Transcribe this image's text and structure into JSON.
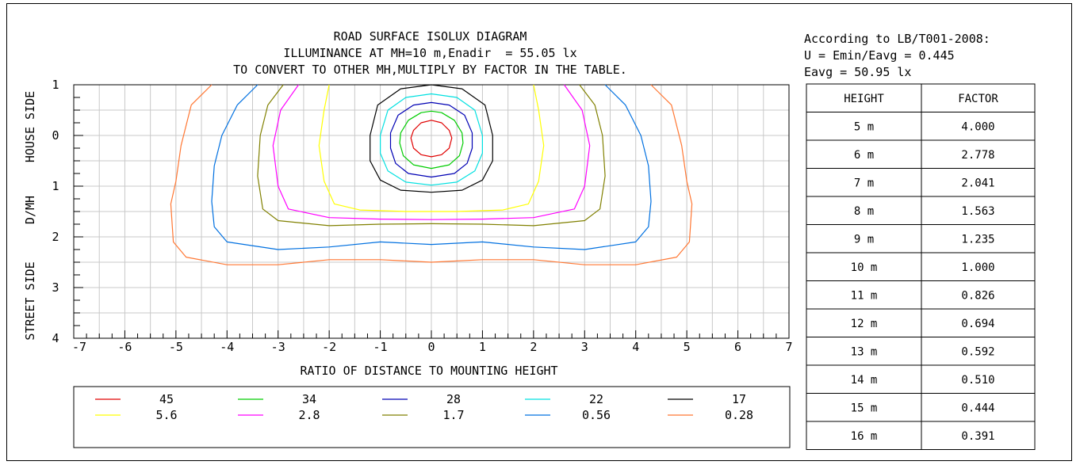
{
  "chart_data": {
    "type": "contour",
    "title": "ROAD SURFACE ISOLUX DIAGRAM",
    "subtitle": "ILLUMINANCE AT MH=10 m,Enadir  = 55.05 lx",
    "note": "TO CONVERT TO OTHER MH,MULTIPLY BY FACTOR IN THE TABLE.",
    "xlabel": "RATIO OF DISTANCE TO MOUNTING HEIGHT",
    "ylabel_parts": [
      "STREET SIDE",
      "D/MH",
      "HOUSE SIDE"
    ],
    "xlim": [
      -7,
      7
    ],
    "ylim": [
      -1,
      4
    ],
    "x_ticks": [
      -7,
      -6,
      -5,
      -4,
      -3,
      -2,
      -1,
      0,
      1,
      2,
      3,
      4,
      5,
      6,
      7
    ],
    "y_ticks": [
      -1,
      0,
      1,
      2,
      3,
      4
    ],
    "y_tick_labels": [
      "1",
      "0",
      "1",
      "2",
      "3",
      "4"
    ],
    "grid": true,
    "contours": [
      {
        "level": "45",
        "color": "#e00000",
        "points": [
          [
            -0.35,
            -0.1
          ],
          [
            -0.2,
            -0.25
          ],
          [
            0,
            -0.3
          ],
          [
            0.2,
            -0.25
          ],
          [
            0.35,
            -0.1
          ],
          [
            0.4,
            0.05
          ],
          [
            0.35,
            0.25
          ],
          [
            0.2,
            0.38
          ],
          [
            0,
            0.42
          ],
          [
            -0.2,
            0.38
          ],
          [
            -0.35,
            0.25
          ],
          [
            -0.4,
            0.05
          ]
        ]
      },
      {
        "level": "34",
        "color": "#00cc00",
        "points": [
          [
            -0.6,
            -0.05
          ],
          [
            -0.45,
            -0.3
          ],
          [
            -0.2,
            -0.45
          ],
          [
            0,
            -0.48
          ],
          [
            0.2,
            -0.45
          ],
          [
            0.45,
            -0.3
          ],
          [
            0.6,
            -0.05
          ],
          [
            0.62,
            0.15
          ],
          [
            0.55,
            0.4
          ],
          [
            0.35,
            0.58
          ],
          [
            0,
            0.65
          ],
          [
            -0.35,
            0.58
          ],
          [
            -0.55,
            0.4
          ],
          [
            -0.62,
            0.15
          ]
        ]
      },
      {
        "level": "28",
        "color": "#0000b4",
        "points": [
          [
            -0.8,
            -0.05
          ],
          [
            -0.65,
            -0.4
          ],
          [
            -0.35,
            -0.6
          ],
          [
            0,
            -0.65
          ],
          [
            0.35,
            -0.6
          ],
          [
            0.65,
            -0.4
          ],
          [
            0.8,
            -0.05
          ],
          [
            0.8,
            0.25
          ],
          [
            0.7,
            0.55
          ],
          [
            0.45,
            0.75
          ],
          [
            0,
            0.82
          ],
          [
            -0.45,
            0.75
          ],
          [
            -0.7,
            0.55
          ],
          [
            -0.8,
            0.25
          ]
        ]
      },
      {
        "level": "22",
        "color": "#00e0e0",
        "points": [
          [
            -1.0,
            0.0
          ],
          [
            -0.85,
            -0.5
          ],
          [
            -0.5,
            -0.75
          ],
          [
            0,
            -0.82
          ],
          [
            0.5,
            -0.75
          ],
          [
            0.85,
            -0.5
          ],
          [
            1.0,
            0.0
          ],
          [
            1.0,
            0.35
          ],
          [
            0.85,
            0.7
          ],
          [
            0.5,
            0.92
          ],
          [
            0,
            0.98
          ],
          [
            -0.5,
            0.92
          ],
          [
            -0.85,
            0.7
          ],
          [
            -1.0,
            0.35
          ]
        ]
      },
      {
        "level": "17",
        "color": "#000000",
        "points": [
          [
            -1.2,
            0.0
          ],
          [
            -1.05,
            -0.6
          ],
          [
            -0.6,
            -0.92
          ],
          [
            0,
            -1.0
          ],
          [
            0.6,
            -0.92
          ],
          [
            1.05,
            -0.6
          ],
          [
            1.2,
            0.0
          ],
          [
            1.2,
            0.5
          ],
          [
            1.0,
            0.88
          ],
          [
            0.6,
            1.08
          ],
          [
            0,
            1.12
          ],
          [
            -0.6,
            1.08
          ],
          [
            -1.0,
            0.88
          ],
          [
            -1.2,
            0.5
          ]
        ]
      },
      {
        "level": "5.6",
        "color": "#ffff00",
        "points": [
          [
            -2.0,
            -1.0
          ],
          [
            -2.1,
            -0.5
          ],
          [
            -2.2,
            0.2
          ],
          [
            -2.1,
            0.9
          ],
          [
            -1.9,
            1.35
          ],
          [
            -1.4,
            1.47
          ],
          [
            -0.5,
            1.5
          ],
          [
            0.5,
            1.5
          ],
          [
            1.4,
            1.47
          ],
          [
            1.9,
            1.35
          ],
          [
            2.1,
            0.9
          ],
          [
            2.2,
            0.2
          ],
          [
            2.1,
            -0.5
          ],
          [
            2.0,
            -1.0
          ]
        ]
      },
      {
        "level": "2.8",
        "color": "#ff00ff",
        "points": [
          [
            -2.6,
            -1.0
          ],
          [
            -2.95,
            -0.5
          ],
          [
            -3.1,
            0.2
          ],
          [
            -3.0,
            1.0
          ],
          [
            -2.8,
            1.45
          ],
          [
            -2.0,
            1.62
          ],
          [
            -1.0,
            1.65
          ],
          [
            0,
            1.66
          ],
          [
            1.0,
            1.65
          ],
          [
            2.0,
            1.62
          ],
          [
            2.8,
            1.45
          ],
          [
            3.0,
            1.0
          ],
          [
            3.1,
            0.2
          ],
          [
            2.95,
            -0.5
          ],
          [
            2.6,
            -1.0
          ]
        ]
      },
      {
        "level": "1.7",
        "color": "#808000",
        "points": [
          [
            -2.9,
            -1.0
          ],
          [
            -3.2,
            -0.6
          ],
          [
            -3.35,
            0.0
          ],
          [
            -3.4,
            0.8
          ],
          [
            -3.3,
            1.45
          ],
          [
            -3.0,
            1.68
          ],
          [
            -2.0,
            1.78
          ],
          [
            -1.0,
            1.75
          ],
          [
            0,
            1.74
          ],
          [
            1.0,
            1.75
          ],
          [
            2.0,
            1.78
          ],
          [
            3.0,
            1.68
          ],
          [
            3.3,
            1.45
          ],
          [
            3.4,
            0.8
          ],
          [
            3.35,
            0.0
          ],
          [
            3.2,
            -0.6
          ],
          [
            2.9,
            -1.0
          ]
        ]
      },
      {
        "level": "0.56",
        "color": "#0070e0",
        "points": [
          [
            -3.4,
            -1.0
          ],
          [
            -3.8,
            -0.6
          ],
          [
            -4.1,
            0.0
          ],
          [
            -4.25,
            0.6
          ],
          [
            -4.3,
            1.3
          ],
          [
            -4.25,
            1.8
          ],
          [
            -4.0,
            2.1
          ],
          [
            -3.0,
            2.25
          ],
          [
            -2.0,
            2.2
          ],
          [
            -1.0,
            2.1
          ],
          [
            0,
            2.15
          ],
          [
            1.0,
            2.1
          ],
          [
            2.0,
            2.2
          ],
          [
            3.0,
            2.25
          ],
          [
            4.0,
            2.1
          ],
          [
            4.25,
            1.8
          ],
          [
            4.3,
            1.3
          ],
          [
            4.25,
            0.6
          ],
          [
            4.1,
            0.0
          ],
          [
            3.8,
            -0.6
          ],
          [
            3.4,
            -1.0
          ]
        ]
      },
      {
        "level": "0.28",
        "color": "#ff7733",
        "points": [
          [
            -4.3,
            -1.0
          ],
          [
            -4.7,
            -0.6
          ],
          [
            -4.9,
            0.2
          ],
          [
            -5.0,
            0.9
          ],
          [
            -5.1,
            1.35
          ],
          [
            -5.05,
            2.1
          ],
          [
            -4.8,
            2.4
          ],
          [
            -4.0,
            2.55
          ],
          [
            -3.0,
            2.55
          ],
          [
            -2.0,
            2.45
          ],
          [
            -1.0,
            2.45
          ],
          [
            0,
            2.5
          ],
          [
            1.0,
            2.45
          ],
          [
            2.0,
            2.45
          ],
          [
            3.0,
            2.55
          ],
          [
            4.0,
            2.55
          ],
          [
            4.8,
            2.4
          ],
          [
            5.05,
            2.1
          ],
          [
            5.1,
            1.35
          ],
          [
            5.0,
            0.9
          ],
          [
            4.9,
            0.2
          ],
          [
            4.7,
            -0.6
          ],
          [
            4.3,
            -1.0
          ]
        ]
      }
    ],
    "legend": [
      {
        "label": "45",
        "color": "#e00000"
      },
      {
        "label": "34",
        "color": "#00cc00"
      },
      {
        "label": "28",
        "color": "#0000b4"
      },
      {
        "label": "22",
        "color": "#00e0e0"
      },
      {
        "label": "17",
        "color": "#000000"
      },
      {
        "label": "5.6",
        "color": "#ffff00"
      },
      {
        "label": "2.8",
        "color": "#ff00ff"
      },
      {
        "label": "1.7",
        "color": "#808000"
      },
      {
        "label": "0.56",
        "color": "#0070e0"
      },
      {
        "label": "0.28",
        "color": "#ff7733"
      }
    ]
  },
  "standard": {
    "line1": "According to LB/T001-2008:",
    "line2": "U = Emin/Eavg = 0.445",
    "line3": "Eavg = 50.95 lx"
  },
  "factor_table": {
    "headers": [
      "HEIGHT",
      "FACTOR"
    ],
    "rows": [
      [
        "5 m",
        "4.000"
      ],
      [
        "6 m",
        "2.778"
      ],
      [
        "7 m",
        "2.041"
      ],
      [
        "8 m",
        "1.563"
      ],
      [
        "9 m",
        "1.235"
      ],
      [
        "10 m",
        "1.000"
      ],
      [
        "11 m",
        "0.826"
      ],
      [
        "12 m",
        "0.694"
      ],
      [
        "13 m",
        "0.592"
      ],
      [
        "14 m",
        "0.510"
      ],
      [
        "15 m",
        "0.444"
      ],
      [
        "16 m",
        "0.391"
      ]
    ]
  }
}
